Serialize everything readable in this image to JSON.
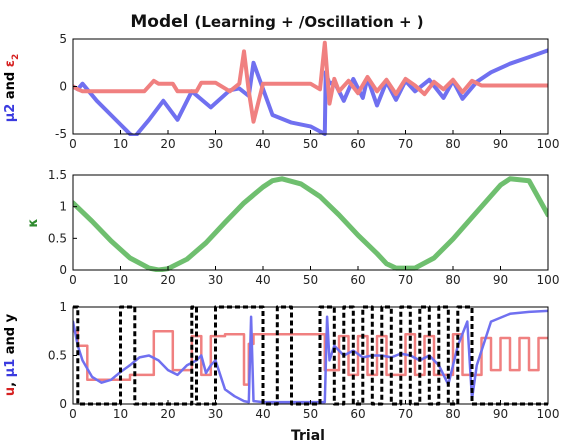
{
  "title_main": "Model",
  "title_sub": "(Learning + /Oscillation + )",
  "xlabel": "Trial",
  "chart_data": [
    {
      "type": "line",
      "ylabel_parts": [
        {
          "text": "μ2",
          "color": "#3a3adf"
        },
        {
          "text": " and ",
          "color": "#000000"
        },
        {
          "text": "ε",
          "color": "#d62020"
        },
        {
          "text": "2",
          "color": "#d62020",
          "sub": true
        }
      ],
      "xlim": [
        0,
        100
      ],
      "ylim": [
        -5,
        5
      ],
      "xticks": [
        "0",
        "10",
        "20",
        "30",
        "40",
        "50",
        "60",
        "70",
        "80",
        "90",
        "100"
      ],
      "yticks": [
        "-5",
        "0",
        "5"
      ],
      "ytick_values": [
        -5,
        0,
        5
      ],
      "grid": false,
      "series": [
        {
          "color": "#7070f0",
          "width": 4,
          "x": [
            0,
            1,
            2,
            5,
            8,
            10,
            12,
            13,
            16,
            19,
            22,
            25,
            29,
            33,
            35,
            37,
            38,
            42,
            46,
            50,
            53,
            53.2,
            54,
            55,
            57,
            59,
            61,
            62,
            64,
            66,
            68,
            70,
            72,
            75,
            78,
            80,
            82,
            85,
            88,
            92,
            96,
            100
          ],
          "values": [
            0.0,
            -0.3,
            0.3,
            -1.5,
            -3.0,
            -4.0,
            -5.0,
            -5.3,
            -3.5,
            -1.5,
            -3.5,
            -0.5,
            -2.2,
            -0.4,
            -0.2,
            -1.0,
            2.5,
            -3.0,
            -3.8,
            -4.2,
            -5.0,
            1.5,
            0.3,
            0.5,
            -1.5,
            0.8,
            -1.2,
            0.9,
            -2.0,
            0.5,
            -1.4,
            0.6,
            -0.5,
            0.7,
            -1.2,
            0.6,
            -1.3,
            0.5,
            1.5,
            2.4,
            3.1,
            3.8
          ]
        },
        {
          "color": "#f08080",
          "width": 4,
          "x": [
            0,
            1,
            2,
            5,
            10,
            15,
            17,
            18,
            21,
            22,
            26,
            27,
            30,
            33,
            35,
            36,
            37,
            38,
            40,
            45,
            50,
            52,
            53,
            54,
            55,
            56,
            58,
            60,
            62,
            64,
            66,
            68,
            70,
            72,
            74,
            76,
            78,
            80,
            82,
            84,
            86,
            90,
            100
          ],
          "values": [
            0.0,
            -0.3,
            -0.5,
            -0.5,
            -0.5,
            -0.5,
            0.6,
            0.3,
            0.3,
            -0.5,
            -0.5,
            0.4,
            0.4,
            -0.5,
            0.3,
            3.7,
            -0.5,
            -3.7,
            0.3,
            0.3,
            0.3,
            -0.3,
            4.6,
            -1.8,
            0.8,
            -0.5,
            0.6,
            -0.7,
            1.0,
            -0.5,
            0.7,
            -0.8,
            0.8,
            0.1,
            -0.8,
            0.5,
            -0.3,
            0.7,
            -0.6,
            0.6,
            0.1,
            0.1,
            0.1
          ]
        }
      ]
    },
    {
      "type": "line",
      "ylabel_parts": [
        {
          "text": "κ",
          "color": "#2e8b2e"
        }
      ],
      "xlim": [
        0,
        100
      ],
      "ylim": [
        0,
        1.5
      ],
      "xticks": [
        "0",
        "10",
        "20",
        "30",
        "40",
        "50",
        "60",
        "70",
        "80",
        "90",
        "100"
      ],
      "yticks": [
        "0",
        "0.5",
        "1",
        "1.5"
      ],
      "ytick_values": [
        0,
        0.5,
        1,
        1.5
      ],
      "grid": false,
      "series": [
        {
          "color": "#6fbf6f",
          "width": 5,
          "x": [
            0,
            4,
            8,
            12,
            16,
            18,
            20,
            24,
            28,
            32,
            36,
            40,
            42,
            44,
            48,
            52,
            56,
            60,
            64,
            66,
            68,
            72,
            76,
            80,
            84,
            88,
            90,
            92,
            96,
            100
          ],
          "values": [
            1.06,
            0.77,
            0.46,
            0.19,
            0.03,
            0.0,
            0.02,
            0.17,
            0.43,
            0.75,
            1.06,
            1.31,
            1.41,
            1.44,
            1.36,
            1.16,
            0.87,
            0.55,
            0.26,
            0.1,
            0.03,
            0.03,
            0.19,
            0.49,
            0.83,
            1.17,
            1.34,
            1.44,
            1.41,
            0.87
          ]
        }
      ]
    },
    {
      "type": "line",
      "ylabel_parts": [
        {
          "text": "u",
          "color": "#d62020"
        },
        {
          "text": ", ",
          "color": "#000000"
        },
        {
          "text": "μ1",
          "color": "#3a3adf"
        },
        {
          "text": " and y",
          "color": "#000000"
        }
      ],
      "xlim": [
        0,
        100
      ],
      "ylim": [
        0,
        1
      ],
      "xticks": [
        "0",
        "10",
        "20",
        "30",
        "40",
        "50",
        "60",
        "70",
        "80",
        "90",
        "100"
      ],
      "yticks": [
        "0",
        "0.5",
        "1"
      ],
      "ytick_values": [
        0,
        0.5,
        1
      ],
      "grid": false,
      "series": [
        {
          "color": "#f08080",
          "width": 2.5,
          "x": [
            0,
            1,
            1,
            3,
            3,
            12,
            12,
            17,
            17,
            21,
            21,
            25,
            25,
            27,
            27,
            29,
            29,
            32,
            32,
            36,
            36,
            37,
            37,
            38,
            38,
            53,
            53,
            56,
            56,
            58,
            58,
            60,
            60,
            62,
            62,
            64,
            64,
            66,
            66,
            70,
            70,
            72,
            72,
            74,
            74,
            76,
            76,
            80,
            80,
            82,
            82,
            86,
            86,
            88,
            88,
            90,
            90,
            92,
            92,
            94,
            94,
            96,
            96,
            98,
            98,
            100
          ],
          "values": [
            0.75,
            0.75,
            0.6,
            0.6,
            0.25,
            0.25,
            0.3,
            0.3,
            0.75,
            0.75,
            0.35,
            0.35,
            0.7,
            0.7,
            0.3,
            0.3,
            0.7,
            0.7,
            0.72,
            0.72,
            0.2,
            0.2,
            0.62,
            0.62,
            0.72,
            0.72,
            0.35,
            0.35,
            0.7,
            0.7,
            0.3,
            0.3,
            0.7,
            0.7,
            0.3,
            0.3,
            0.7,
            0.7,
            0.3,
            0.3,
            0.72,
            0.72,
            0.3,
            0.3,
            0.7,
            0.7,
            0.3,
            0.3,
            0.72,
            0.72,
            0.3,
            0.3,
            0.68,
            0.68,
            0.35,
            0.35,
            0.68,
            0.68,
            0.35,
            0.35,
            0.68,
            0.68,
            0.35,
            0.35,
            0.68,
            0.68
          ]
        },
        {
          "color": "#7070f0",
          "width": 2.5,
          "x": [
            0,
            1,
            2,
            4,
            6,
            8,
            10,
            12,
            14,
            16,
            18,
            20,
            22,
            24,
            26,
            27,
            28,
            29,
            30,
            32,
            34,
            36,
            37,
            37.5,
            38,
            40,
            45,
            50,
            53,
            53.5,
            54,
            55,
            57,
            59,
            61,
            63,
            65,
            67,
            69,
            71,
            73,
            75,
            77,
            79,
            81,
            83,
            84,
            85,
            88,
            92,
            96,
            100
          ],
          "values": [
            0.85,
            0.6,
            0.45,
            0.28,
            0.22,
            0.25,
            0.33,
            0.4,
            0.48,
            0.5,
            0.45,
            0.35,
            0.3,
            0.4,
            0.45,
            0.5,
            0.32,
            0.4,
            0.45,
            0.15,
            0.08,
            0.03,
            0.02,
            0.9,
            0.03,
            0.02,
            0.02,
            0.02,
            0.02,
            0.9,
            0.45,
            0.6,
            0.5,
            0.55,
            0.48,
            0.5,
            0.5,
            0.48,
            0.52,
            0.5,
            0.45,
            0.5,
            0.4,
            0.2,
            0.6,
            0.85,
            0.05,
            0.4,
            0.85,
            0.93,
            0.95,
            0.96
          ]
        },
        {
          "color": "#000000",
          "width": 3,
          "dashed": true,
          "x": [
            0,
            1,
            1,
            10,
            10,
            13,
            13,
            25,
            25,
            26,
            26,
            30,
            30,
            40,
            40,
            43,
            43,
            46,
            46,
            52,
            52,
            55,
            55,
            57,
            57,
            59,
            59,
            61,
            61,
            63,
            63,
            65,
            65,
            67,
            67,
            69,
            69,
            71,
            71,
            73,
            73,
            75,
            75,
            77,
            77,
            79,
            79,
            81,
            81,
            84,
            84,
            100
          ],
          "values": [
            1,
            1,
            0,
            0,
            1,
            1,
            0,
            0,
            1,
            1,
            0,
            0,
            1,
            1,
            0,
            0,
            1,
            1,
            0,
            0,
            1,
            1,
            0,
            0,
            1,
            1,
            0,
            0,
            1,
            1,
            0,
            0,
            1,
            1,
            0,
            0,
            1,
            1,
            0,
            0,
            1,
            1,
            0,
            0,
            1,
            1,
            0,
            0,
            1,
            1,
            0,
            0
          ]
        }
      ]
    }
  ]
}
